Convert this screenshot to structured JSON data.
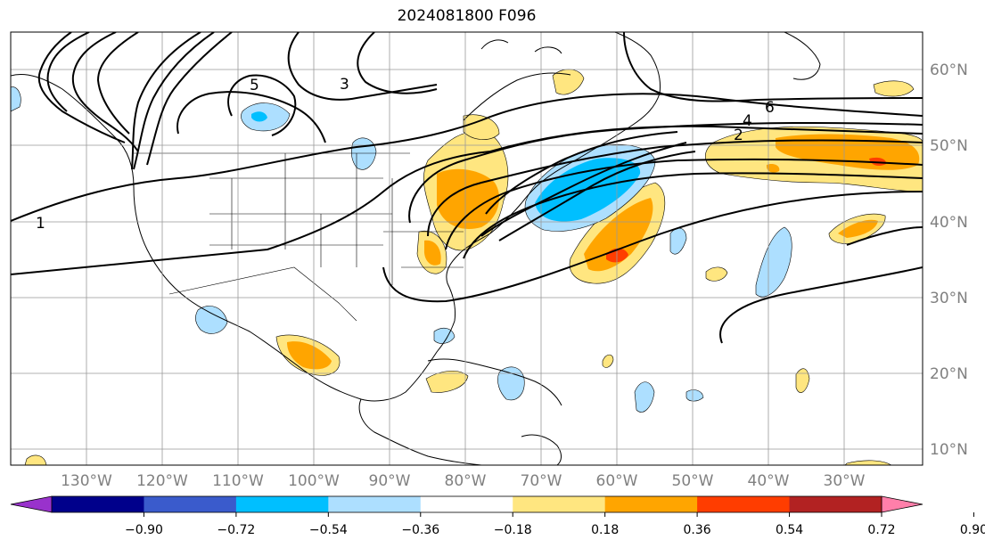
{
  "title": "2024081800 F096",
  "map": {
    "lon_labels": [
      "130°W",
      "120°W",
      "110°W",
      "100°W",
      "90°W",
      "80°W",
      "70°W",
      "60°W",
      "50°W",
      "40°W",
      "30°W"
    ],
    "lat_labels": [
      "60°N",
      "50°N",
      "40°N",
      "30°N",
      "20°N",
      "10°N"
    ],
    "contour_labels": [
      "1",
      "2",
      "3",
      "4",
      "5",
      "6"
    ],
    "contour_color": "#000000",
    "grid_color": "#999999"
  },
  "colorbar": {
    "ticks": [
      "−0.90",
      "−0.72",
      "−0.54",
      "−0.36",
      "−0.18",
      "0.18",
      "0.36",
      "0.54",
      "0.72",
      "0.90"
    ],
    "colors": [
      "#9932CC",
      "#00008B",
      "#3A5BCC",
      "#00BFFF",
      "#ADDFFF",
      "#FFFFFF",
      "#FFE680",
      "#FFA500",
      "#FF3D00",
      "#B22222",
      "#FF7FAA"
    ]
  }
}
